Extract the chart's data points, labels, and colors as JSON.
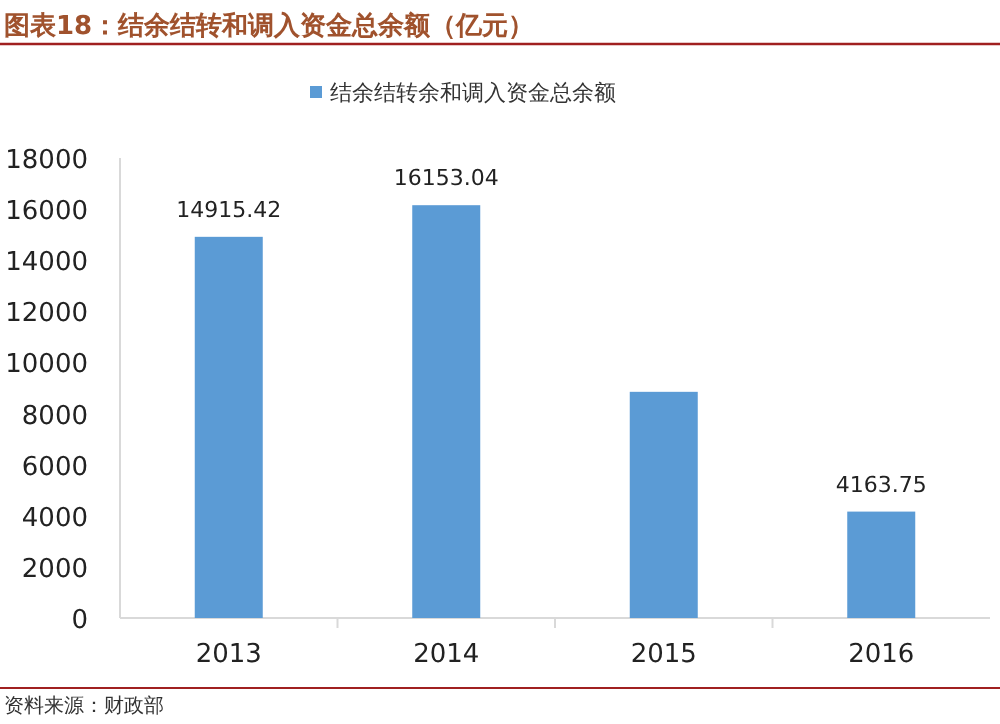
{
  "chart_data": {
    "type": "bar",
    "title": "图表18：结余结转和调入资金总余额（亿元）",
    "categories": [
      "2013",
      "2014",
      "2015",
      "2016"
    ],
    "series": [
      {
        "name": "结余结转余和调入资金总余额",
        "color": "#5b9bd5",
        "values": [
          14915.42,
          16153.04,
          8850,
          4163.75
        ],
        "value_labels": [
          "14915.42",
          "16153.04",
          null,
          "4163.75"
        ]
      }
    ],
    "ylim": [
      0,
      18000
    ],
    "yticks": [
      0,
      2000,
      4000,
      6000,
      8000,
      10000,
      12000,
      14000,
      16000,
      18000
    ],
    "legend": "top",
    "grid": false,
    "annotations": [
      "资料来源：财政部"
    ]
  }
}
